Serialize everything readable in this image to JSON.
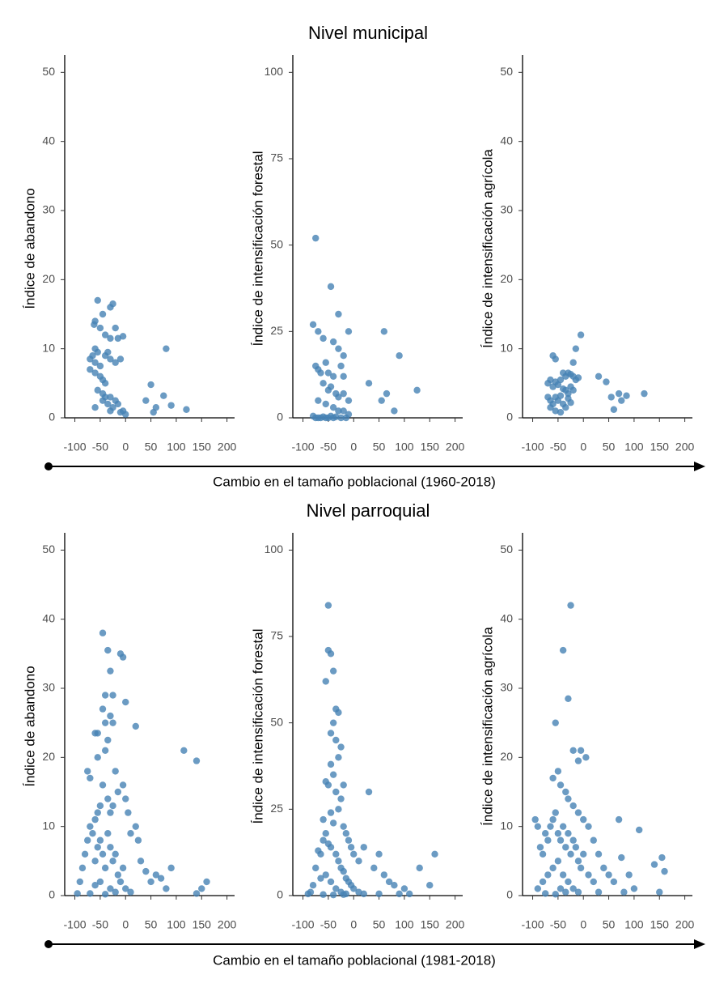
{
  "sections": [
    {
      "title": "Nivel municipal",
      "caption": "Cambio en el tamaño poblacional (1960-2018)"
    },
    {
      "title": "Nivel parroquial",
      "caption": "Cambio en el tamaño poblacional (1981-2018)"
    }
  ],
  "chart_data": [
    {
      "type": "scatter",
      "ylabel": "Índice de abandono",
      "color": "#4682b4",
      "xlim": [
        -120,
        215
      ],
      "ylim": [
        0,
        52.5
      ],
      "xticks": [
        -100,
        -50,
        0,
        50,
        100,
        150,
        200
      ],
      "yticks": [
        0,
        10,
        20,
        30,
        40,
        50
      ],
      "x": [
        -60,
        -55,
        -62,
        -50,
        -45,
        -30,
        -25,
        -20,
        -15,
        -5,
        -40,
        -30,
        -60,
        -55,
        -65,
        -70,
        -60,
        -50,
        -40,
        -35,
        -30,
        -20,
        -10,
        -70,
        -60,
        -50,
        -45,
        -40,
        -55,
        -45,
        -40,
        -30,
        -20,
        -35,
        -25,
        -60,
        -15,
        -5,
        0,
        -10,
        -45,
        -30,
        50,
        40,
        60,
        55,
        80,
        75,
        90,
        120
      ],
      "y": [
        14,
        17,
        13.5,
        13,
        15,
        16,
        16.5,
        13,
        11.5,
        11.8,
        12,
        11.5,
        10,
        9.5,
        9,
        8.5,
        8,
        7.5,
        9,
        9.5,
        8.5,
        8,
        8.5,
        7,
        6.5,
        6,
        5.5,
        5,
        4,
        3.5,
        3,
        3,
        2.5,
        2,
        1.5,
        1.5,
        2,
        1,
        0.5,
        0.8,
        2.5,
        1,
        4.8,
        2.5,
        1.5,
        0.8,
        10,
        3.2,
        1.8,
        1.2
      ]
    },
    {
      "type": "scatter",
      "ylabel": "Índice de intensificación forestal",
      "color": "#4682b4",
      "xlim": [
        -120,
        215
      ],
      "ylim": [
        0,
        105
      ],
      "xticks": [
        -100,
        -50,
        0,
        50,
        100,
        150,
        200
      ],
      "yticks": [
        0,
        25,
        50,
        75,
        100
      ],
      "x": [
        -75,
        -45,
        -30,
        -80,
        -70,
        -60,
        -40,
        -20,
        -10,
        60,
        90,
        30,
        125,
        80,
        55,
        65,
        -75,
        -70,
        -65,
        -55,
        -50,
        -40,
        -30,
        -25,
        -20,
        -60,
        -50,
        -45,
        -35,
        -30,
        -20,
        -10,
        -70,
        -55,
        -40,
        -30,
        -20,
        -10,
        -80,
        -75,
        -70,
        -65,
        -60,
        -55,
        -50,
        -45,
        -40,
        -35,
        -25,
        -15
      ],
      "y": [
        52,
        38,
        30,
        27,
        25,
        23,
        22,
        18,
        25,
        25,
        18,
        10,
        8,
        2,
        5,
        7,
        15,
        14,
        13,
        16,
        13,
        12,
        20,
        15,
        12,
        10,
        8,
        9,
        7,
        6,
        7,
        5,
        5,
        4,
        3,
        2,
        2,
        1,
        0.5,
        0,
        0,
        0,
        0.3,
        0,
        0,
        0.5,
        0,
        0.3,
        0,
        0
      ]
    },
    {
      "type": "scatter",
      "ylabel": "Índice de intensificación agrícola",
      "color": "#4682b4",
      "xlim": [
        -120,
        215
      ],
      "ylim": [
        0,
        52.5
      ],
      "xticks": [
        -100,
        -50,
        0,
        50,
        100,
        150,
        200
      ],
      "yticks": [
        0,
        10,
        20,
        30,
        40,
        50
      ],
      "x": [
        -60,
        -55,
        -15,
        -5,
        -40,
        -35,
        -30,
        -25,
        -20,
        -10,
        -70,
        -65,
        -60,
        -55,
        -50,
        -45,
        -40,
        -35,
        -30,
        -25,
        -20,
        -15,
        -70,
        -65,
        -60,
        -55,
        -50,
        -45,
        -40,
        -35,
        -30,
        -25,
        -65,
        -55,
        -45,
        -20,
        30,
        45,
        55,
        70,
        75,
        85,
        120,
        60
      ],
      "y": [
        9,
        8.5,
        10,
        12,
        6.5,
        6,
        6.5,
        6.3,
        6,
        5.8,
        5,
        5.5,
        4.5,
        5.2,
        4.8,
        5.5,
        4.2,
        4,
        3.5,
        4.5,
        4,
        5.5,
        3,
        2.5,
        2,
        3,
        2.5,
        3.2,
        2,
        1.5,
        2.8,
        2.2,
        1.5,
        1,
        0.8,
        8,
        6,
        5.2,
        3,
        3.5,
        2.5,
        3.2,
        3.5,
        1.2
      ]
    },
    {
      "type": "scatter",
      "ylabel": "Índice de abandono",
      "color": "#4682b4",
      "xlim": [
        -120,
        215
      ],
      "ylim": [
        0,
        52.5
      ],
      "xticks": [
        -100,
        -50,
        0,
        50,
        100,
        150,
        200
      ],
      "yticks": [
        0,
        10,
        20,
        30,
        40,
        50
      ],
      "x": [
        -45,
        -35,
        -10,
        -5,
        -30,
        -40,
        -25,
        0,
        -45,
        -30,
        -40,
        -25,
        20,
        -60,
        -55,
        -35,
        -40,
        -55,
        -75,
        -70,
        115,
        140,
        160,
        150,
        140,
        90,
        80,
        70,
        60,
        50,
        40,
        30,
        25,
        20,
        10,
        5,
        0,
        -5,
        -15,
        -20,
        -25,
        -30,
        -35,
        -45,
        -50,
        -55,
        -60,
        -65,
        -70,
        -75,
        -80,
        -85,
        -90,
        -95,
        -60,
        -55,
        -50,
        -45,
        -40,
        -35,
        -30,
        -25,
        -20,
        -15,
        -10,
        -5,
        0,
        10,
        -70,
        -40,
        -20,
        -50,
        -30,
        -60
      ],
      "y": [
        38,
        35.5,
        35,
        34.5,
        32.5,
        29,
        29,
        28,
        27,
        26,
        25,
        25,
        24.5,
        23.5,
        23.5,
        22.5,
        21,
        20,
        18,
        17,
        21,
        19.5,
        2,
        1,
        0.3,
        4,
        1,
        2.5,
        3,
        2,
        3.5,
        5,
        8,
        10,
        9,
        12,
        14,
        16,
        15,
        18,
        13,
        12,
        14,
        16,
        13,
        12,
        11,
        9,
        10,
        8,
        6,
        4,
        2,
        0.3,
        5,
        7,
        8,
        6,
        4,
        9,
        7,
        5,
        6,
        3,
        2,
        4,
        1,
        0.5,
        0.3,
        0.2,
        0.5,
        2,
        1,
        1.5
      ]
    },
    {
      "type": "scatter",
      "ylabel": "Índice de intensificación forestal",
      "color": "#4682b4",
      "xlim": [
        -120,
        215
      ],
      "ylim": [
        0,
        105
      ],
      "xticks": [
        -100,
        -50,
        0,
        50,
        100,
        150,
        200
      ],
      "yticks": [
        0,
        25,
        50,
        75,
        100
      ],
      "x": [
        -50,
        -50,
        -45,
        -40,
        -55,
        -35,
        -30,
        -40,
        -45,
        -35,
        -25,
        -30,
        -45,
        -40,
        -55,
        -50,
        -20,
        -35,
        -25,
        -30,
        -45,
        -60,
        -40,
        -20,
        -15,
        -10,
        -5,
        0,
        10,
        20,
        30,
        40,
        50,
        60,
        70,
        80,
        100,
        130,
        150,
        160,
        -75,
        -70,
        -65,
        -60,
        -55,
        -50,
        -45,
        -35,
        -30,
        -25,
        -20,
        -15,
        -10,
        -5,
        0,
        10,
        20,
        -80,
        -85,
        -90,
        -65,
        -55,
        -45,
        -35,
        -25,
        -15,
        -60,
        -40,
        -20,
        50,
        110,
        90
      ],
      "y": [
        84,
        71,
        70,
        65,
        62,
        54,
        53,
        50,
        47,
        45,
        43,
        40,
        38,
        35,
        33,
        32,
        32,
        30,
        28,
        25,
        24,
        22,
        21,
        20,
        18,
        16,
        14,
        12,
        10,
        14,
        30,
        8,
        12,
        6,
        4,
        3,
        2,
        8,
        3,
        12,
        8,
        13,
        12,
        16,
        18,
        15,
        14,
        12,
        10,
        8,
        7,
        5,
        4,
        3,
        2,
        1,
        0.5,
        3,
        1,
        0.5,
        5,
        6,
        4,
        2,
        1,
        0.5,
        0.3,
        0.2,
        0.3,
        0.5,
        0.5,
        0.5
      ]
    },
    {
      "type": "scatter",
      "ylabel": "Índice de intensificación agrícola",
      "color": "#4682b4",
      "xlim": [
        -120,
        215
      ],
      "ylim": [
        0,
        52.5
      ],
      "xticks": [
        -100,
        -50,
        0,
        50,
        100,
        150,
        200
      ],
      "yticks": [
        0,
        10,
        20,
        30,
        40,
        50
      ],
      "x": [
        -25,
        -40,
        -30,
        -55,
        -20,
        -5,
        -10,
        5,
        -60,
        -50,
        -45,
        -35,
        -30,
        -20,
        -10,
        0,
        10,
        20,
        30,
        40,
        50,
        60,
        70,
        75,
        90,
        100,
        110,
        140,
        155,
        160,
        150,
        -95,
        -90,
        -85,
        -80,
        -75,
        -70,
        -65,
        -60,
        -55,
        -50,
        -45,
        -40,
        -35,
        -30,
        -25,
        -20,
        -15,
        -10,
        -5,
        0,
        10,
        20,
        -80,
        -70,
        -60,
        -50,
        -40,
        -30,
        -20,
        -10,
        -90,
        -75,
        -55,
        -45,
        -35,
        30,
        80
      ],
      "y": [
        42,
        35.5,
        28.5,
        25,
        21,
        21,
        19.5,
        20,
        17,
        18,
        16,
        15,
        14,
        13,
        12,
        11,
        10,
        8,
        6,
        4,
        3,
        2,
        11,
        5.5,
        3,
        1,
        9.5,
        4.5,
        5.5,
        3.5,
        0.5,
        11,
        10,
        7,
        6,
        9,
        8,
        10,
        11,
        12,
        9,
        8,
        10,
        7,
        9,
        6,
        8,
        7,
        5,
        4,
        6,
        3,
        2,
        2,
        3,
        4,
        5,
        3,
        2,
        1,
        0.5,
        1,
        0.3,
        0.2,
        1,
        0.5,
        0.5,
        0.5
      ]
    }
  ]
}
